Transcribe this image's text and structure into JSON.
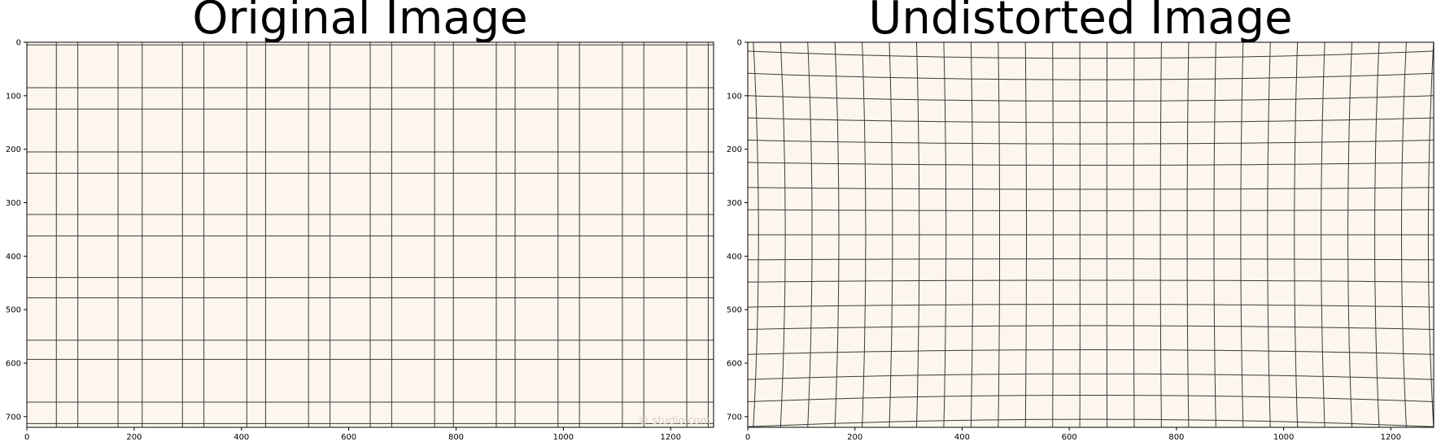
{
  "figures": [
    {
      "id": "original",
      "title": "Original Image",
      "xticks": [
        "0",
        "200",
        "400",
        "600",
        "800",
        "1000",
        "1200"
      ],
      "yticks": [
        "0",
        "100",
        "200",
        "300",
        "400",
        "500",
        "600",
        "700"
      ],
      "watermark": "© studio.com"
    },
    {
      "id": "undistorted",
      "title": "Undistorted Image",
      "xticks": [
        "0",
        "200",
        "400",
        "600",
        "800",
        "1000",
        "1200"
      ],
      "yticks": [
        "0",
        "100",
        "200",
        "300",
        "400",
        "500",
        "600",
        "700"
      ]
    }
  ],
  "colors": {
    "background": "#fdf6ee",
    "grid": "#3a3a3a",
    "axis": "#000000"
  },
  "chart_data": [
    {
      "type": "image",
      "title": "Original Image",
      "xlim": [
        0,
        1280
      ],
      "ylim": [
        720,
        0
      ],
      "grid_x": [
        0,
        55,
        95,
        170,
        215,
        290,
        330,
        410,
        445,
        525,
        565,
        640,
        680,
        760,
        795,
        875,
        910,
        990,
        1030,
        1110,
        1150,
        1230,
        1270
      ],
      "grid_y": [
        5,
        85,
        125,
        205,
        245,
        322,
        362,
        440,
        478,
        557,
        593,
        673,
        713
      ]
    },
    {
      "type": "image",
      "title": "Undistorted Image",
      "xlim": [
        0,
        1280
      ],
      "ylim": [
        720,
        0
      ],
      "grid_x": [
        -30,
        20,
        70,
        120,
        170,
        220,
        270,
        320,
        370,
        420,
        470,
        520,
        570,
        620,
        670,
        720,
        770,
        820,
        870,
        920,
        970,
        1020,
        1070,
        1120,
        1170,
        1220,
        1270,
        1320
      ],
      "grid_y": [
        -5,
        30,
        70,
        110,
        150,
        190,
        230,
        275,
        315,
        360,
        405,
        445,
        490,
        530,
        575,
        620,
        660,
        705,
        745
      ]
    }
  ]
}
